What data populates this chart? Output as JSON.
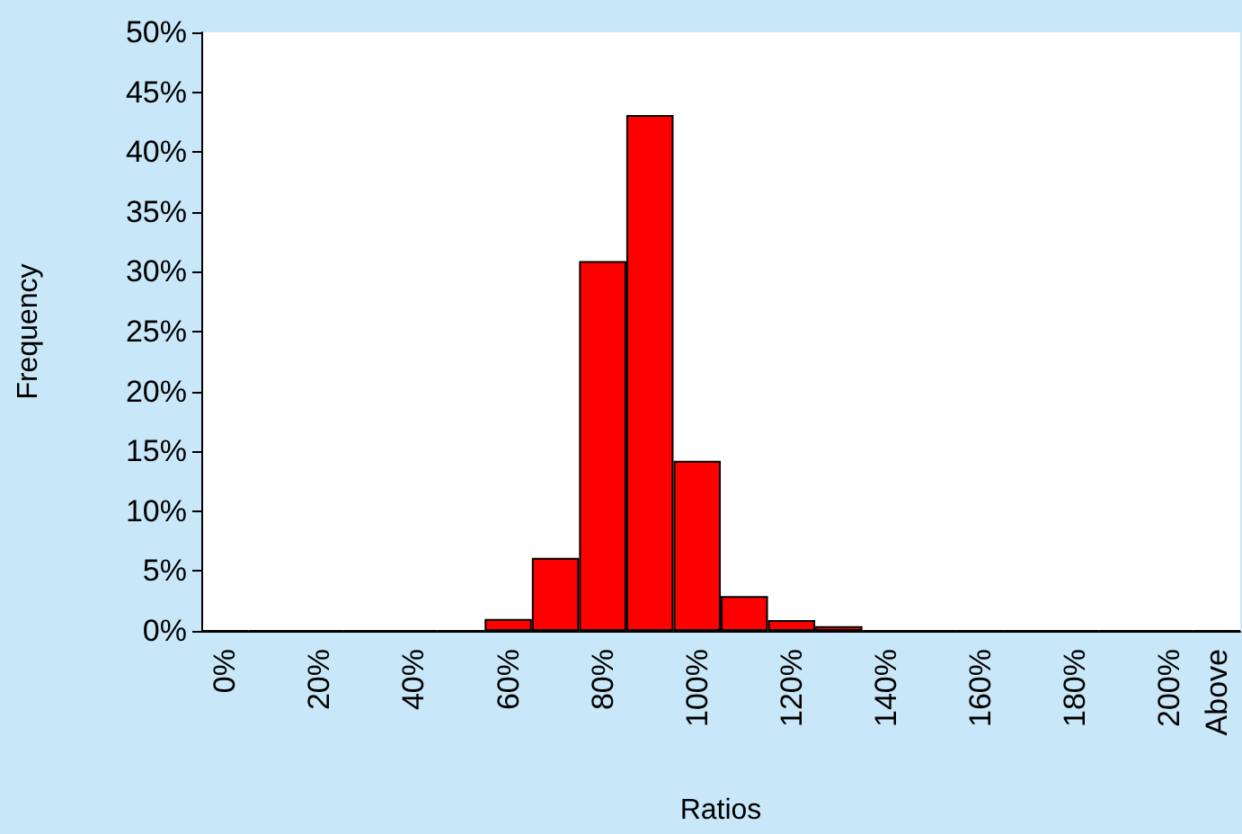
{
  "chart_data": {
    "type": "bar",
    "xlabel": "Ratios",
    "ylabel": "Frequency",
    "categories": [
      "0%",
      null,
      "20%",
      null,
      "40%",
      null,
      "60%",
      null,
      "80%",
      null,
      "100%",
      null,
      "120%",
      null,
      "140%",
      null,
      "160%",
      null,
      "180%",
      null,
      "200%",
      "Above"
    ],
    "values": [
      0,
      0,
      0,
      0,
      0,
      0,
      1,
      6.1,
      30.9,
      43.1,
      14.2,
      2.9,
      0.9,
      0.4,
      0,
      0,
      0,
      0,
      0,
      0,
      0,
      0
    ],
    "color": "#ff0000",
    "ylim": [
      0,
      50
    ],
    "yticks": [
      {
        "value": 0,
        "label": "0%"
      },
      {
        "value": 5,
        "label": "5%"
      },
      {
        "value": 10,
        "label": "10%"
      },
      {
        "value": 15,
        "label": "15%"
      },
      {
        "value": 20,
        "label": "20%"
      },
      {
        "value": 25,
        "label": "25%"
      },
      {
        "value": 30,
        "label": "30%"
      },
      {
        "value": 35,
        "label": "35%"
      },
      {
        "value": 40,
        "label": "40%"
      },
      {
        "value": 45,
        "label": "45%"
      },
      {
        "value": 50,
        "label": "50%"
      }
    ],
    "grid": false
  }
}
